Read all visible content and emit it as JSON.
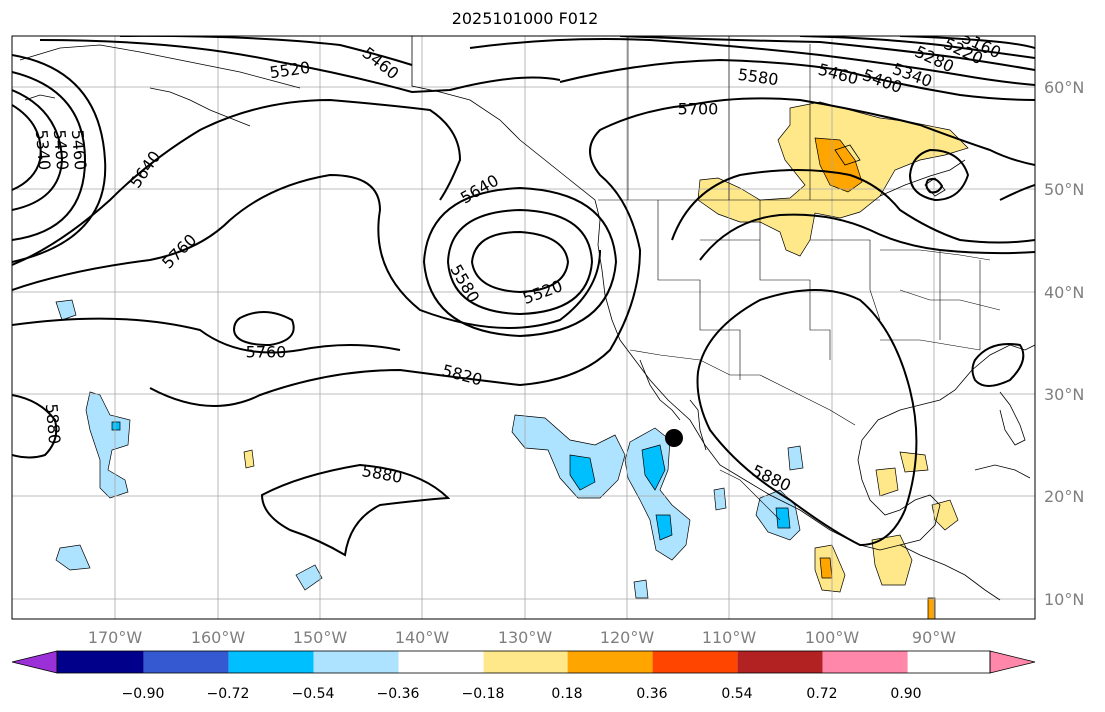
{
  "title": "2025101000 F012",
  "lon_ticks": [
    "170°W",
    "160°W",
    "150°W",
    "140°W",
    "130°W",
    "120°W",
    "110°W",
    "100°W",
    "90°W"
  ],
  "lat_ticks": [
    "60°N",
    "50°N",
    "40°N",
    "30°N",
    "20°N",
    "10°N"
  ],
  "colorbar": {
    "ticks": [
      "−0.90",
      "−0.72",
      "−0.54",
      "−0.36",
      "−0.18",
      "0.18",
      "0.36",
      "0.54",
      "0.72",
      "0.90"
    ],
    "colors": [
      "#9b30d9",
      "#00008b",
      "#3559d0",
      "#00bfff",
      "#aee3ff",
      "#ffffff",
      "#ffe88a",
      "#ffa500",
      "#ff4500",
      "#b22222",
      "#ff88aa"
    ]
  },
  "contour_labels": [
    {
      "text": "5460",
      "lx": 380,
      "ly": 64,
      "rot": 38
    },
    {
      "text": "5520",
      "lx": 290,
      "ly": 71,
      "rot": -8
    },
    {
      "text": "5580",
      "lx": 758,
      "ly": 78,
      "rot": 8
    },
    {
      "text": "5460",
      "lx": 838,
      "ly": 75,
      "rot": 15
    },
    {
      "text": "5400",
      "lx": 882,
      "ly": 82,
      "rot": 20
    },
    {
      "text": "5340",
      "lx": 912,
      "ly": 76,
      "rot": 20
    },
    {
      "text": "5280",
      "lx": 934,
      "ly": 60,
      "rot": 25
    },
    {
      "text": "5220",
      "lx": 963,
      "ly": 52,
      "rot": 25
    },
    {
      "text": "5160",
      "lx": 981,
      "ly": 46,
      "rot": 25
    },
    {
      "text": "5700",
      "lx": 698,
      "ly": 110,
      "rot": 0
    },
    {
      "text": "5460",
      "lx": 78,
      "ly": 150,
      "rot": 85
    },
    {
      "text": "5400",
      "lx": 60,
      "ly": 150,
      "rot": 85
    },
    {
      "text": "5340",
      "lx": 42,
      "ly": 150,
      "rot": 85
    },
    {
      "text": "5640",
      "lx": 146,
      "ly": 170,
      "rot": -55
    },
    {
      "text": "5640",
      "lx": 480,
      "ly": 190,
      "rot": -30
    },
    {
      "text": "5760",
      "lx": 180,
      "ly": 252,
      "rot": -45
    },
    {
      "text": "5580",
      "lx": 464,
      "ly": 284,
      "rot": 60
    },
    {
      "text": "5520",
      "lx": 543,
      "ly": 293,
      "rot": -20
    },
    {
      "text": "5760",
      "lx": 266,
      "ly": 353,
      "rot": 0
    },
    {
      "text": "5820",
      "lx": 462,
      "ly": 376,
      "rot": 15
    },
    {
      "text": "5880",
      "lx": 52,
      "ly": 424,
      "rot": 85
    },
    {
      "text": "5880",
      "lx": 382,
      "ly": 475,
      "rot": 10
    },
    {
      "text": "5880",
      "lx": 771,
      "ly": 479,
      "rot": 25
    }
  ]
}
